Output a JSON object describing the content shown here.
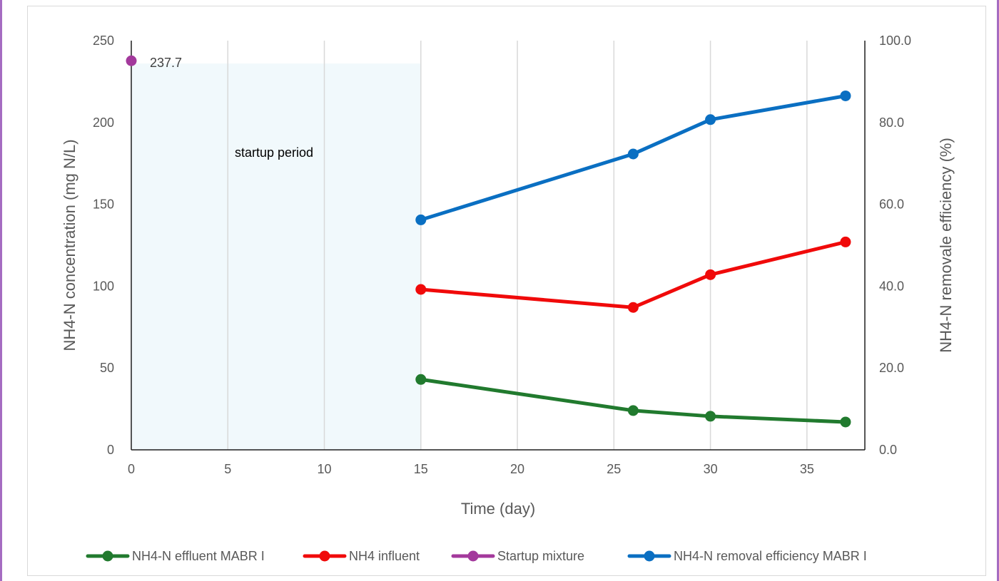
{
  "chart_data": {
    "type": "line",
    "xlabel": "Time (day)",
    "ylabel_left": "NH4-N concentration (mg N/L)",
    "ylabel_right": "NH4-N removale efficiency (%)",
    "xlim": [
      0,
      38
    ],
    "ylim_left": [
      0,
      250
    ],
    "ylim_right": [
      0,
      100
    ],
    "x_ticks": [
      "0",
      "5",
      "10",
      "15",
      "20",
      "25",
      "30",
      "35"
    ],
    "y_left_ticks": [
      "0",
      "50",
      "100",
      "150",
      "200",
      "250"
    ],
    "y_right_ticks": [
      "0.0",
      "20.0",
      "40.0",
      "60.0",
      "80.0",
      "100.0"
    ],
    "grid": "vertical",
    "legend_position": "bottom",
    "shaded_region": {
      "label": "startup period",
      "x_start": 0,
      "x_end": 15,
      "y_top": 236
    },
    "series": [
      {
        "name": "NH4-N effluent MABR I",
        "axis": "left",
        "color": "#217a2e",
        "x": [
          15,
          26,
          30,
          37
        ],
        "values": [
          43,
          24,
          20.5,
          17
        ]
      },
      {
        "name": "NH4 influent",
        "axis": "left",
        "color": "#f00a0a",
        "x": [
          15,
          26,
          30,
          37
        ],
        "values": [
          98,
          87,
          107,
          127
        ]
      },
      {
        "name": "Startup mixture",
        "axis": "left",
        "color": "#a3399c",
        "x": [
          0
        ],
        "values": [
          237.7
        ],
        "point_label": "237.7"
      },
      {
        "name": "NH4-N removal efficiency MABR I",
        "axis": "right",
        "color": "#0a6fc2",
        "x": [
          15,
          26,
          30,
          37
        ],
        "values": [
          56.2,
          72.3,
          80.7,
          86.5
        ]
      }
    ]
  }
}
